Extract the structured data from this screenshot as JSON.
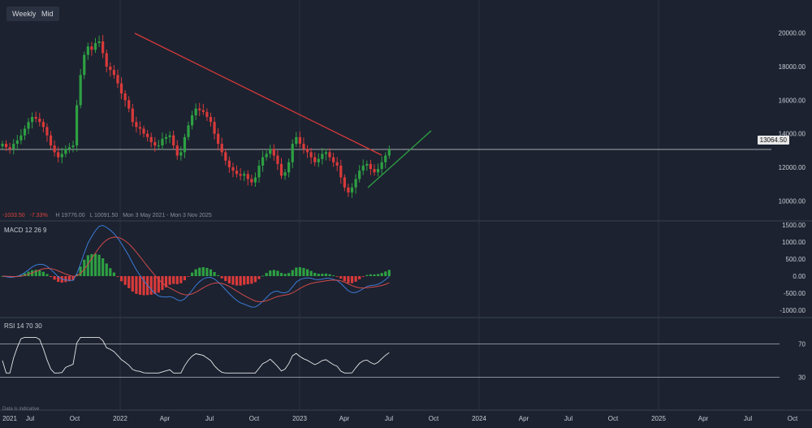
{
  "toolbar": {
    "weekly_label": "Weekly",
    "mid_label": "Mid"
  },
  "hud": {
    "change": "-1033.50",
    "change_pct": "-7.33%",
    "high": "H 19776.00",
    "low": "L 10091.50",
    "range": "Mon 3 May 2021 - Mon 3 Nov 2025"
  },
  "panes": {
    "macd_label": "MACD  12  26  9",
    "rsi_label": "RSI  14  70  30"
  },
  "footer": {
    "disclaimer": "Data is indicative"
  },
  "colors": {
    "bg": "#1c2230",
    "up": "#2ea043",
    "down": "#d93a3a",
    "trend_down": "#d93a3a",
    "trend_up": "#2ea043",
    "macd_line": "#3a7bd5",
    "signal_line": "#d14a4a",
    "rsi_line": "#e6e6e6"
  },
  "chart_data": {
    "type": "candlestick",
    "interval": "Weekly",
    "last_price": "13064.50",
    "price_axis": {
      "ticks": [
        "20000.00",
        "18000.00",
        "16000.00",
        "14000.00",
        "12000.00",
        "10000.00"
      ],
      "ylim": [
        9000,
        21000
      ]
    },
    "time_axis": [
      "2021",
      "Jul",
      "Oct",
      "2022",
      "Apr",
      "Jul",
      "Oct",
      "2023",
      "Apr",
      "Jul",
      "Oct",
      "2024",
      "Apr",
      "Jul",
      "Oct",
      "2025",
      "Apr",
      "Jul",
      "Oct"
    ],
    "price_path": [
      13400,
      13200,
      13100,
      13400,
      13600,
      13900,
      14300,
      14700,
      15000,
      14900,
      14700,
      14400,
      13900,
      13300,
      12900,
      12600,
      12800,
      13100,
      13200,
      13300,
      15700,
      17500,
      18700,
      19200,
      19000,
      19400,
      19500,
      18800,
      18000,
      17800,
      17500,
      17000,
      16400,
      16000,
      15500,
      14700,
      14400,
      14300,
      14000,
      13800,
      13500,
      13300,
      13300,
      13700,
      13800,
      13900,
      13300,
      12700,
      12900,
      13800,
      14500,
      15100,
      15500,
      15400,
      15300,
      15000,
      14700,
      14000,
      13400,
      12900,
      12400,
      12000,
      11800,
      11600,
      11500,
      11600,
      11300,
      11100,
      11400,
      12100,
      12600,
      12800,
      13100,
      12700,
      12200,
      11500,
      11700,
      12300,
      13400,
      13800,
      13400,
      13100,
      12900,
      12600,
      12300,
      12500,
      12800,
      12900,
      12600,
      12300,
      12100,
      11400,
      10800,
      10500,
      10800,
      11300,
      11800,
      12100,
      12200,
      11900,
      11700,
      11900,
      12300,
      12700,
      13064
    ],
    "trendlines": [
      {
        "name": "down",
        "from": [
          "2022-02",
          19800
        ],
        "to": [
          "2023-05",
          12000
        ]
      },
      {
        "name": "up",
        "from": [
          "2023-05",
          10100
        ],
        "to": [
          "2023-09",
          13600
        ]
      }
    ],
    "macd": {
      "ticks": [
        "1500.00",
        "1000.00",
        "500.00",
        "0.00",
        "-500.00",
        "-1000.00"
      ],
      "params": [
        12,
        26,
        9
      ]
    },
    "rsi": {
      "ticks": [
        "70",
        "30"
      ],
      "params": [
        14,
        70,
        30
      ]
    }
  }
}
